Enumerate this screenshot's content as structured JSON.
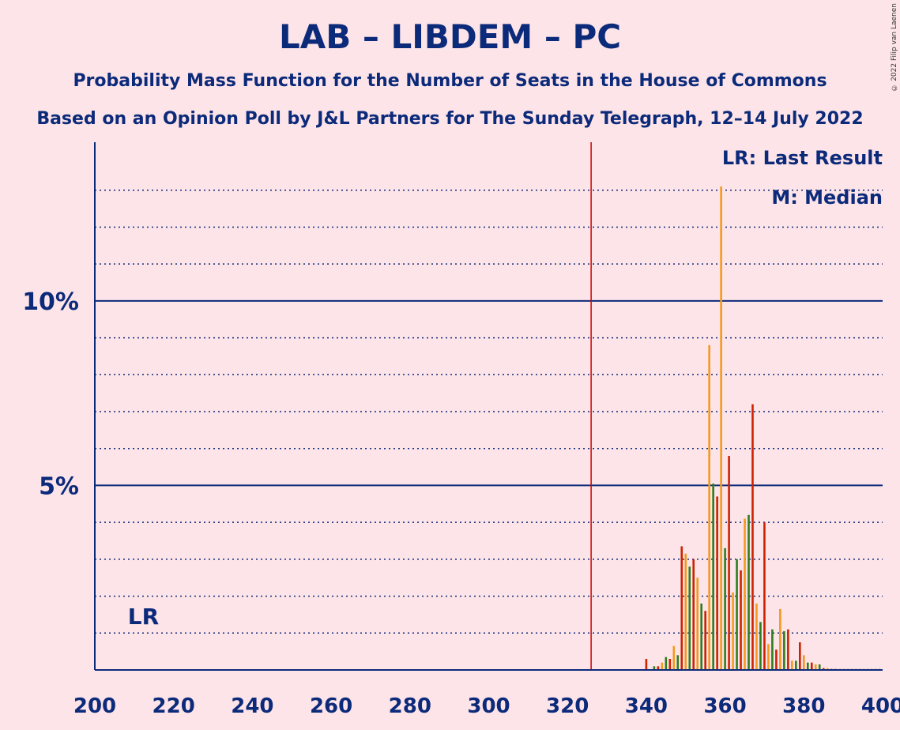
{
  "title": "LAB – LIBDEM – PC",
  "subtitle1": "Probability Mass Function for the Number of Seats in the House of Commons",
  "subtitle2": "Based on an Opinion Poll by J&L Partners for The Sunday Telegraph, 12–14 July 2022",
  "copyright": "© 2022 Filip van Laenen",
  "legend": {
    "lr": "LR: Last Result",
    "median": "M: Median"
  },
  "lr_marker": "LR",
  "colors": {
    "background": "#fde4e8",
    "axis": "#0c2a7a",
    "majority_line": "#cc0000",
    "bar_a": "#2e7d1e",
    "bar_b": "#cc2200",
    "bar_c": "#f39a1e"
  },
  "chart_data": {
    "type": "bar",
    "xlabel": "",
    "ylabel": "",
    "xlim": [
      200,
      400
    ],
    "ylim": [
      0,
      14.3
    ],
    "x_ticks": [
      200,
      220,
      240,
      260,
      280,
      300,
      320,
      340,
      360,
      380,
      400
    ],
    "x_tick_labels": [
      "200",
      "220",
      "240",
      "260",
      "280",
      "300",
      "320",
      "340",
      "360",
      "380",
      "400"
    ],
    "y_ticks": [
      5,
      10
    ],
    "y_tick_labels": [
      "5%",
      "10%"
    ],
    "y_gridlines": [
      1,
      2,
      3,
      4,
      5,
      6,
      7,
      8,
      9,
      10,
      11,
      12,
      13
    ],
    "majority_line_x": 326,
    "last_result_x": 214,
    "median_x": 359,
    "series": [
      {
        "values": [
          [
            340,
            0.3
          ],
          [
            342,
            0.1
          ],
          [
            343,
            0.1
          ],
          [
            344,
            0.2
          ],
          [
            345,
            0.35
          ],
          [
            346,
            0.3
          ],
          [
            347,
            0.65
          ],
          [
            348,
            0.4
          ],
          [
            349,
            3.35
          ],
          [
            350,
            3.15
          ],
          [
            351,
            2.8
          ],
          [
            352,
            3.0
          ],
          [
            353,
            2.5
          ],
          [
            354,
            1.8
          ],
          [
            355,
            1.6
          ],
          [
            356,
            8.8
          ],
          [
            357,
            5.05
          ],
          [
            358,
            4.7
          ],
          [
            359,
            13.1
          ],
          [
            360,
            3.3
          ],
          [
            361,
            5.8
          ],
          [
            362,
            2.1
          ],
          [
            363,
            3.0
          ],
          [
            364,
            2.7
          ],
          [
            365,
            4.1
          ],
          [
            366,
            4.2
          ],
          [
            367,
            7.2
          ],
          [
            368,
            1.8
          ],
          [
            369,
            1.3
          ],
          [
            370,
            4.0
          ],
          [
            371,
            0.7
          ],
          [
            372,
            1.1
          ],
          [
            373,
            0.55
          ],
          [
            374,
            1.65
          ],
          [
            375,
            1.05
          ],
          [
            376,
            1.1
          ],
          [
            377,
            0.25
          ],
          [
            378,
            0.25
          ],
          [
            379,
            0.75
          ],
          [
            380,
            0.4
          ],
          [
            381,
            0.2
          ],
          [
            382,
            0.2
          ],
          [
            383,
            0.15
          ],
          [
            384,
            0.15
          ],
          [
            385,
            0.05
          ],
          [
            386,
            0.05
          ],
          [
            387,
            0.03
          ],
          [
            388,
            0.03
          ]
        ]
      }
    ]
  }
}
